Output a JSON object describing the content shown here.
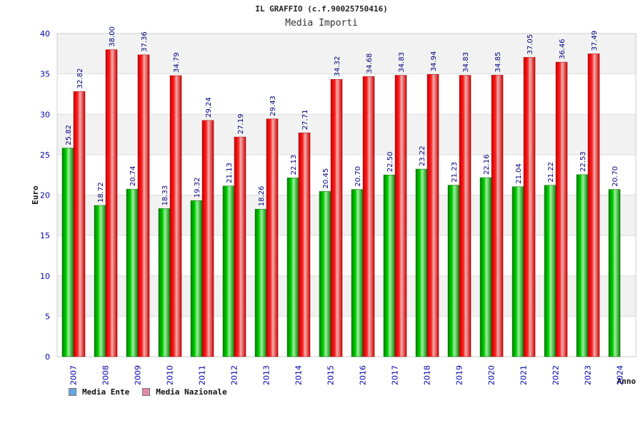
{
  "colors": {
    "ente": "#00b400",
    "nazionale": "#e01818",
    "axis_text": "#0000aa",
    "label_text": "#000080",
    "band": "#f2f2f2",
    "legend_ente": "#6aa3e0",
    "legend_nazionale": "#e58aa8"
  },
  "chart_data": {
    "type": "bar",
    "title": "IL GRAFFIO (c.f.90025750416)",
    "subtitle": "Media Importi",
    "xlabel": "Anno",
    "ylabel": "Euro",
    "ylim": [
      0,
      40
    ],
    "yticks": [
      0,
      5,
      10,
      15,
      20,
      25,
      30,
      35,
      40
    ],
    "grid": true,
    "legend_position": "bottom-left",
    "categories": [
      "2007",
      "2008",
      "2009",
      "2010",
      "2011",
      "2012",
      "2013",
      "2014",
      "2015",
      "2016",
      "2017",
      "2018",
      "2019",
      "2020",
      "2021",
      "2022",
      "2023",
      "2024"
    ],
    "series": [
      {
        "name": "Media Ente",
        "values": [
          25.82,
          18.72,
          20.74,
          18.33,
          19.32,
          21.13,
          18.26,
          22.13,
          20.45,
          20.7,
          22.5,
          23.22,
          21.23,
          22.16,
          21.04,
          21.22,
          22.53,
          20.7
        ],
        "labels": [
          "25.82",
          "18.72",
          "20.74",
          "18.33",
          "19.32",
          "21.13",
          "18.26",
          "22.13",
          "20.45",
          "20.70",
          "22.50",
          "23.22",
          "21.23",
          "22.16",
          "21.04",
          "21.22",
          "22.53",
          "20.70"
        ]
      },
      {
        "name": "Media Nazionale",
        "values": [
          32.82,
          38.0,
          37.36,
          34.79,
          29.24,
          27.19,
          29.43,
          27.71,
          34.32,
          34.68,
          34.83,
          34.94,
          34.83,
          34.85,
          37.05,
          36.46,
          37.49,
          null
        ],
        "labels": [
          "32.82",
          "38.00",
          "37.36",
          "34.79",
          "29.24",
          "27.19",
          "29.43",
          "27.71",
          "34.32",
          "34.68",
          "34.83",
          "34.94",
          "34.83",
          "34.85",
          "37.05",
          "36.46",
          "37.49",
          ""
        ]
      }
    ]
  }
}
